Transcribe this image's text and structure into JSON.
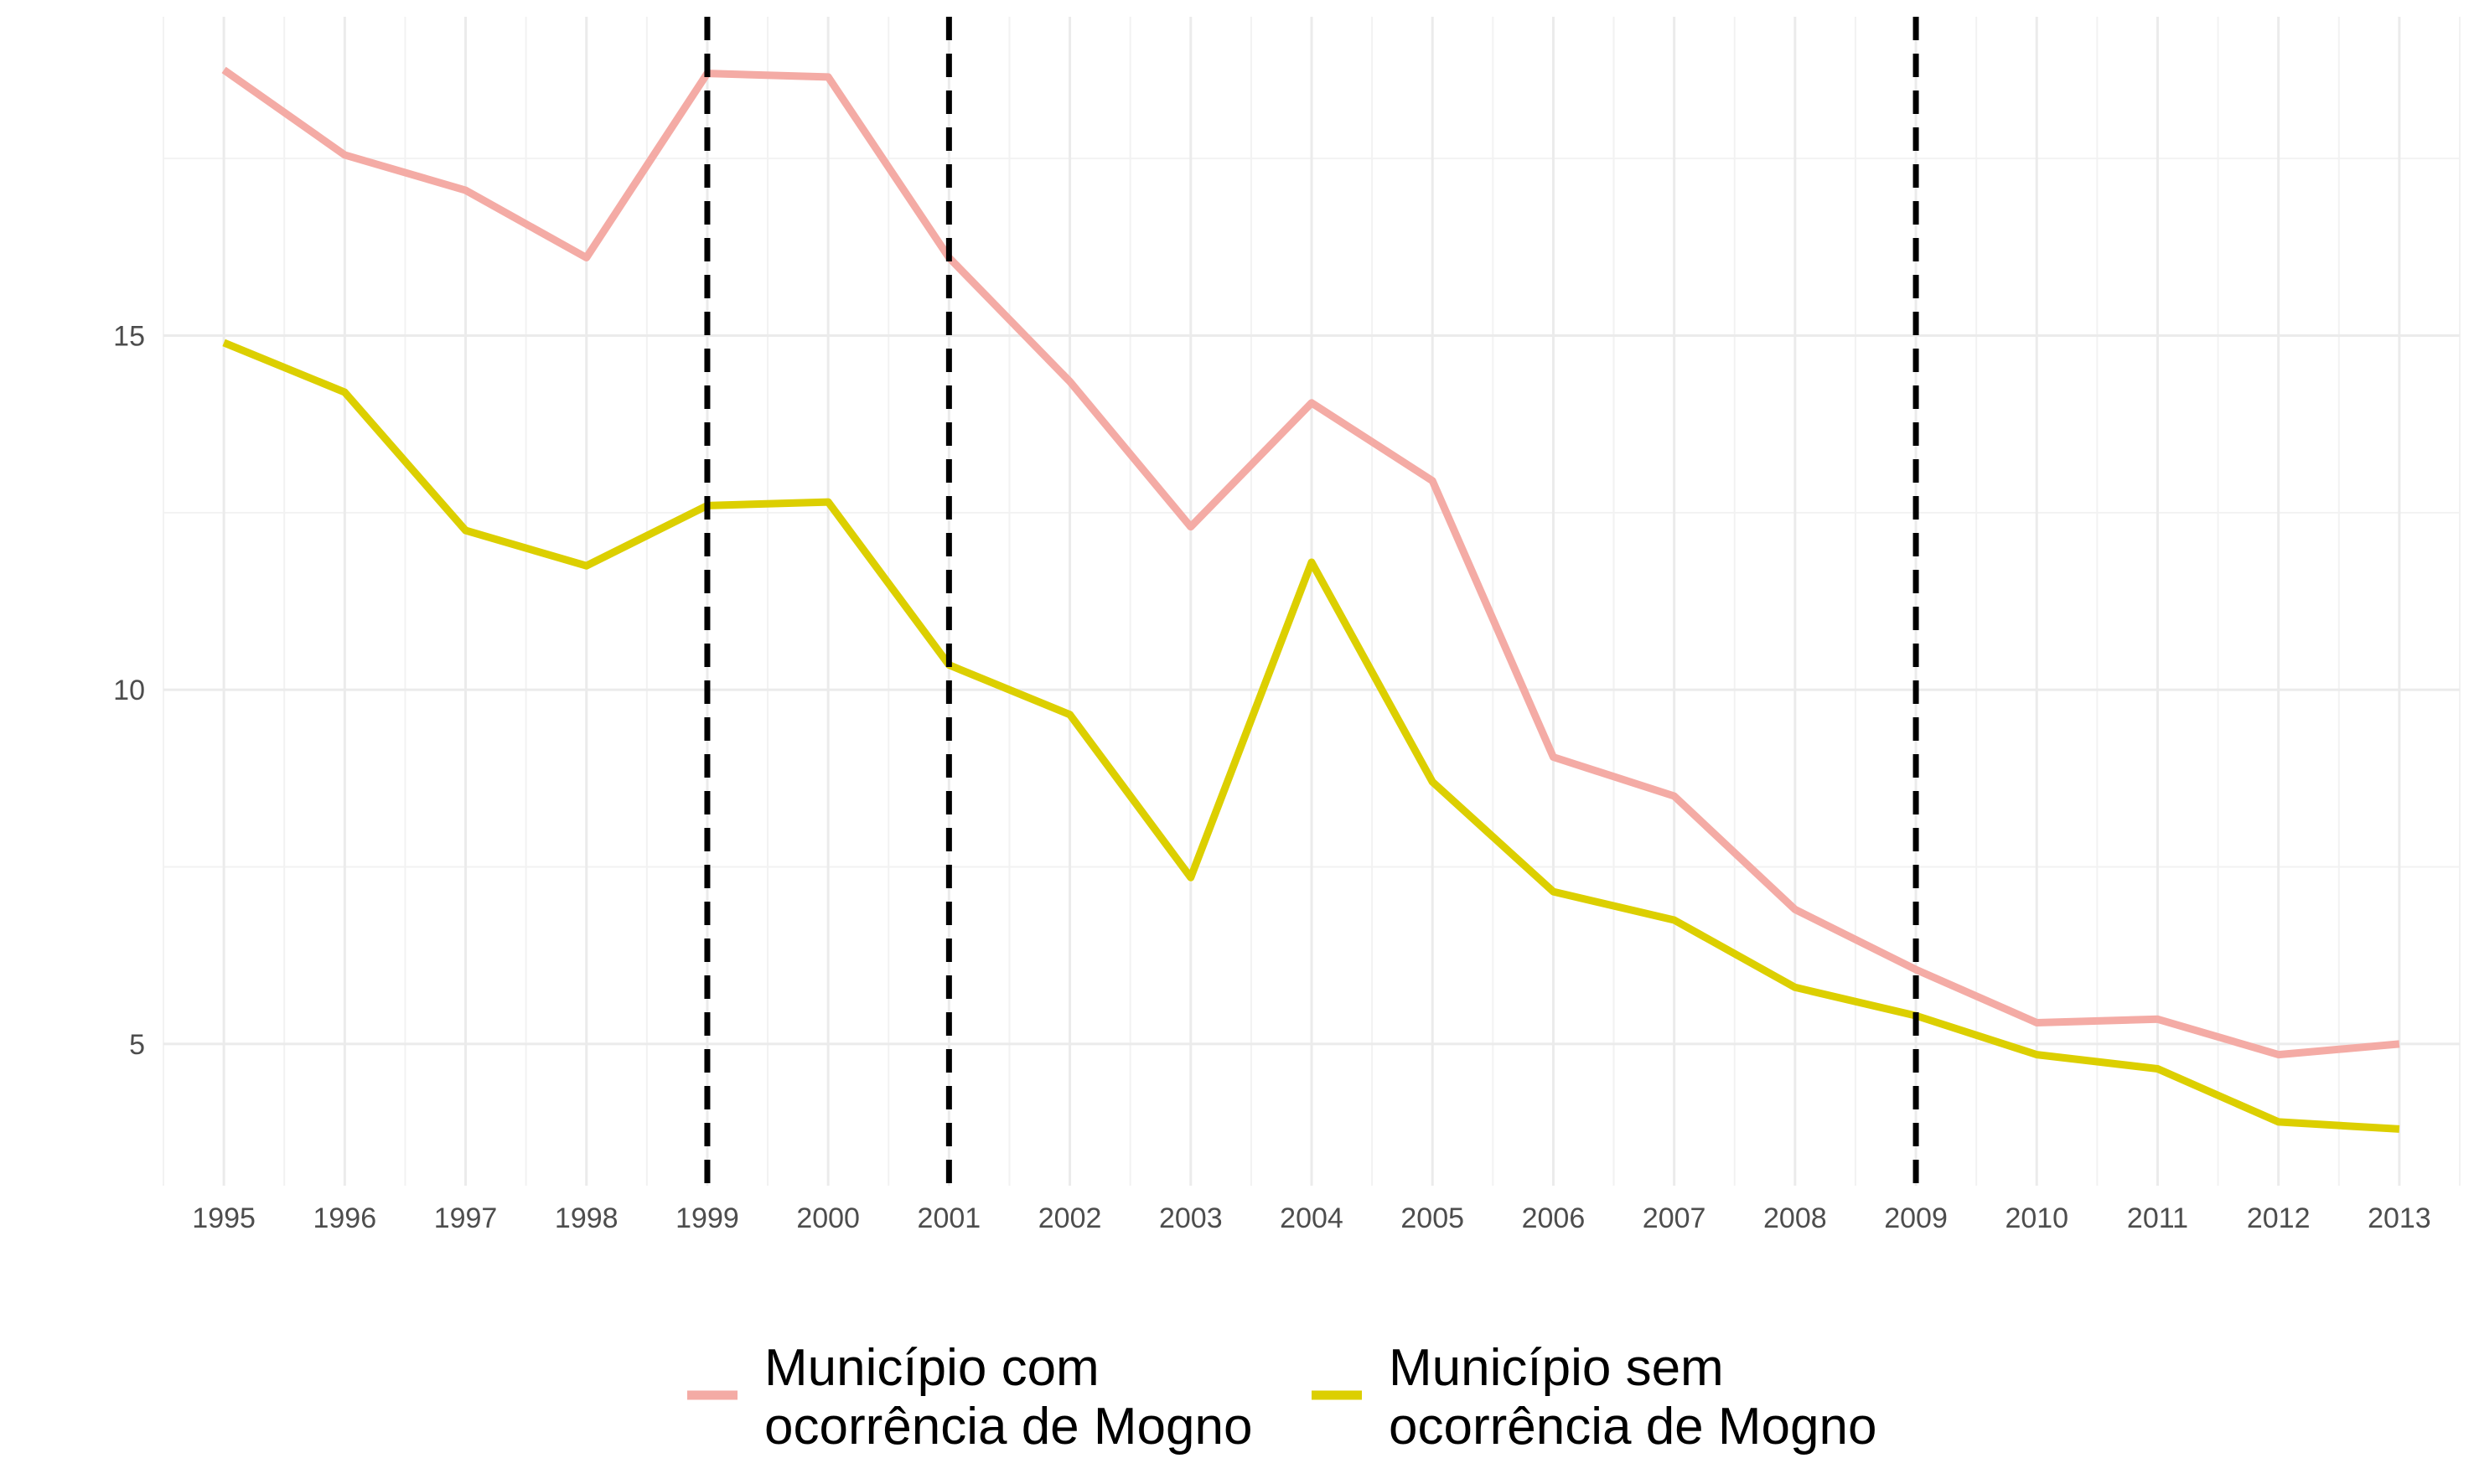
{
  "chart_data": {
    "type": "line",
    "title": "",
    "xlabel": "",
    "ylabel": "",
    "x": [
      1995,
      1996,
      1997,
      1998,
      1999,
      2000,
      2001,
      2002,
      2003,
      2004,
      2005,
      2006,
      2007,
      2008,
      2009,
      2010,
      2011,
      2012,
      2013
    ],
    "x_tick_labels": [
      "1995",
      "1996",
      "1997",
      "1998",
      "1999",
      "2000",
      "2001",
      "2002",
      "2003",
      "2004",
      "2005",
      "2006",
      "2007",
      "2008",
      "2009",
      "2010",
      "2011",
      "2012",
      "2013"
    ],
    "y_ticks": [
      5,
      10,
      15
    ],
    "y_tick_labels": [
      "5",
      "10",
      "15"
    ],
    "xlim": [
      1994.5,
      2013.5
    ],
    "ylim": [
      3,
      19.5
    ],
    "grid": true,
    "legend_position": "bottom",
    "series": [
      {
        "name": "Município com ocorrência de Mogno",
        "legend_lines": [
          "Município com",
          "ocorrência de Mogno"
        ],
        "color": "#f4aba5",
        "values": [
          18.75,
          17.55,
          17.05,
          16.1,
          18.7,
          18.65,
          16.1,
          14.35,
          12.3,
          14.05,
          12.95,
          9.05,
          8.5,
          6.9,
          6.05,
          5.3,
          5.35,
          4.85,
          5.0
        ]
      },
      {
        "name": "Município sem ocorrência de Mogno",
        "legend_lines": [
          "Município sem",
          "ocorrência de Mogno"
        ],
        "color": "#dccf00",
        "values": [
          14.9,
          14.2,
          12.25,
          11.75,
          12.6,
          12.65,
          10.35,
          9.65,
          7.35,
          11.8,
          8.7,
          7.15,
          6.75,
          5.8,
          5.4,
          4.85,
          4.65,
          3.9,
          3.8
        ]
      }
    ],
    "reference_lines": {
      "x": [
        1999,
        2001,
        2009
      ],
      "color": "#000000",
      "style": "dashed"
    }
  }
}
